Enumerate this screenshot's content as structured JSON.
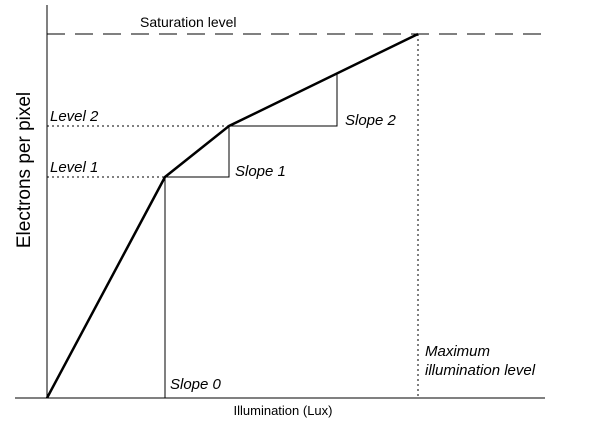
{
  "diagram": {
    "saturation_label": "Saturation level",
    "y_axis_label": "Electrons per pixel",
    "x_axis_label": "Illumination (Lux)",
    "levels": [
      "Level 2",
      "Level 1"
    ],
    "slopes": [
      "Slope 0",
      "Slope 1",
      "Slope 2"
    ],
    "max_label": [
      "Maximum",
      "illumination level"
    ]
  }
}
